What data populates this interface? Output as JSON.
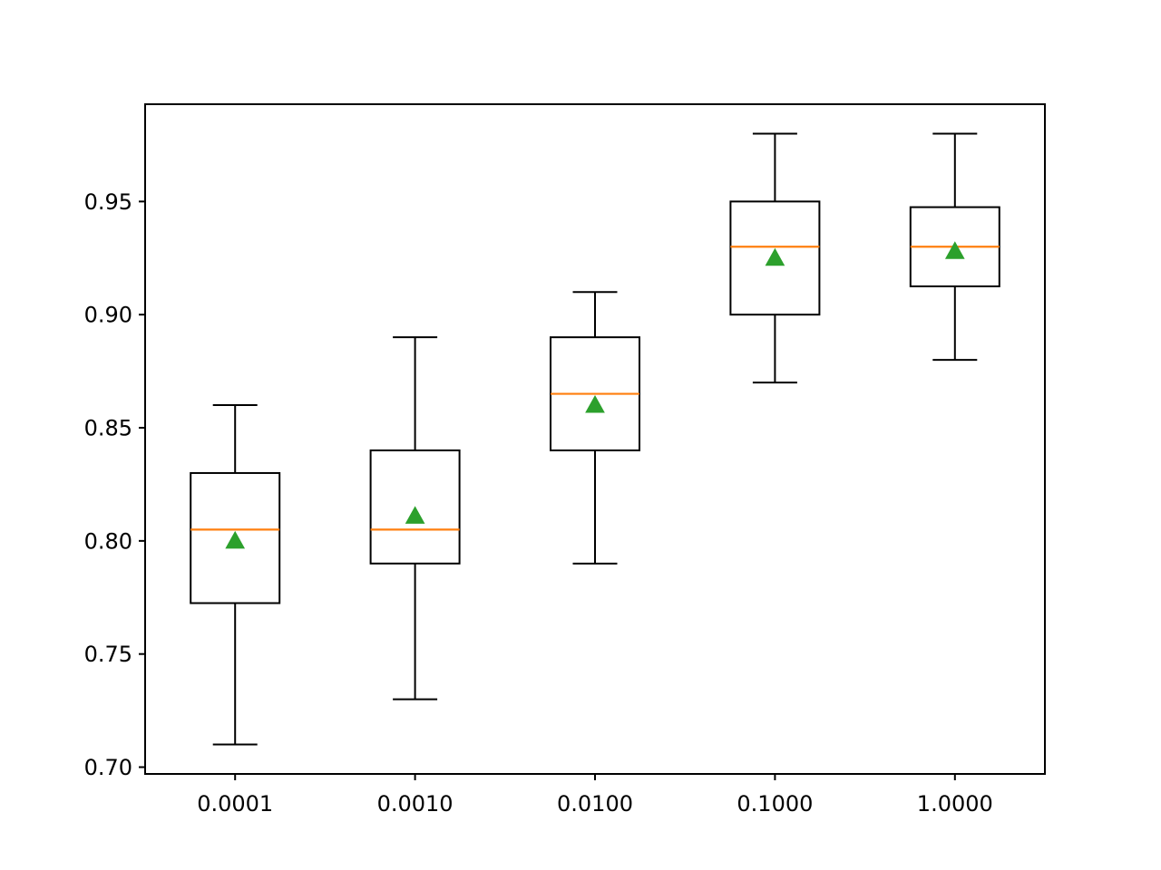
{
  "chart_data": {
    "type": "boxplot",
    "title": "",
    "xlabel": "",
    "ylabel": "",
    "categories": [
      "0.0001",
      "0.0010",
      "0.0100",
      "0.1000",
      "1.0000"
    ],
    "ylim": [
      0.697,
      0.993
    ],
    "yticks": [
      {
        "value": 0.7,
        "label": "0.70"
      },
      {
        "value": 0.75,
        "label": "0.75"
      },
      {
        "value": 0.8,
        "label": "0.80"
      },
      {
        "value": 0.85,
        "label": "0.85"
      },
      {
        "value": 0.9,
        "label": "0.90"
      },
      {
        "value": 0.95,
        "label": "0.95"
      }
    ],
    "boxes": [
      {
        "whisker_low": 0.71,
        "q1": 0.7725,
        "median": 0.805,
        "q3": 0.83,
        "whisker_high": 0.86,
        "mean": 0.8
      },
      {
        "whisker_low": 0.73,
        "q1": 0.79,
        "median": 0.805,
        "q3": 0.84,
        "whisker_high": 0.89,
        "mean": 0.811
      },
      {
        "whisker_low": 0.79,
        "q1": 0.84,
        "median": 0.865,
        "q3": 0.89,
        "whisker_high": 0.91,
        "mean": 0.86
      },
      {
        "whisker_low": 0.87,
        "q1": 0.9,
        "median": 0.93,
        "q3": 0.95,
        "whisker_high": 0.98,
        "mean": 0.925
      },
      {
        "whisker_low": 0.88,
        "q1": 0.9125,
        "median": 0.93,
        "q3": 0.9475,
        "whisker_high": 0.98,
        "mean": 0.928
      }
    ],
    "colors": {
      "box": "#000000",
      "median": "#ff7f0e",
      "mean": "#2ca02c"
    },
    "grid": false,
    "legend": "none"
  }
}
